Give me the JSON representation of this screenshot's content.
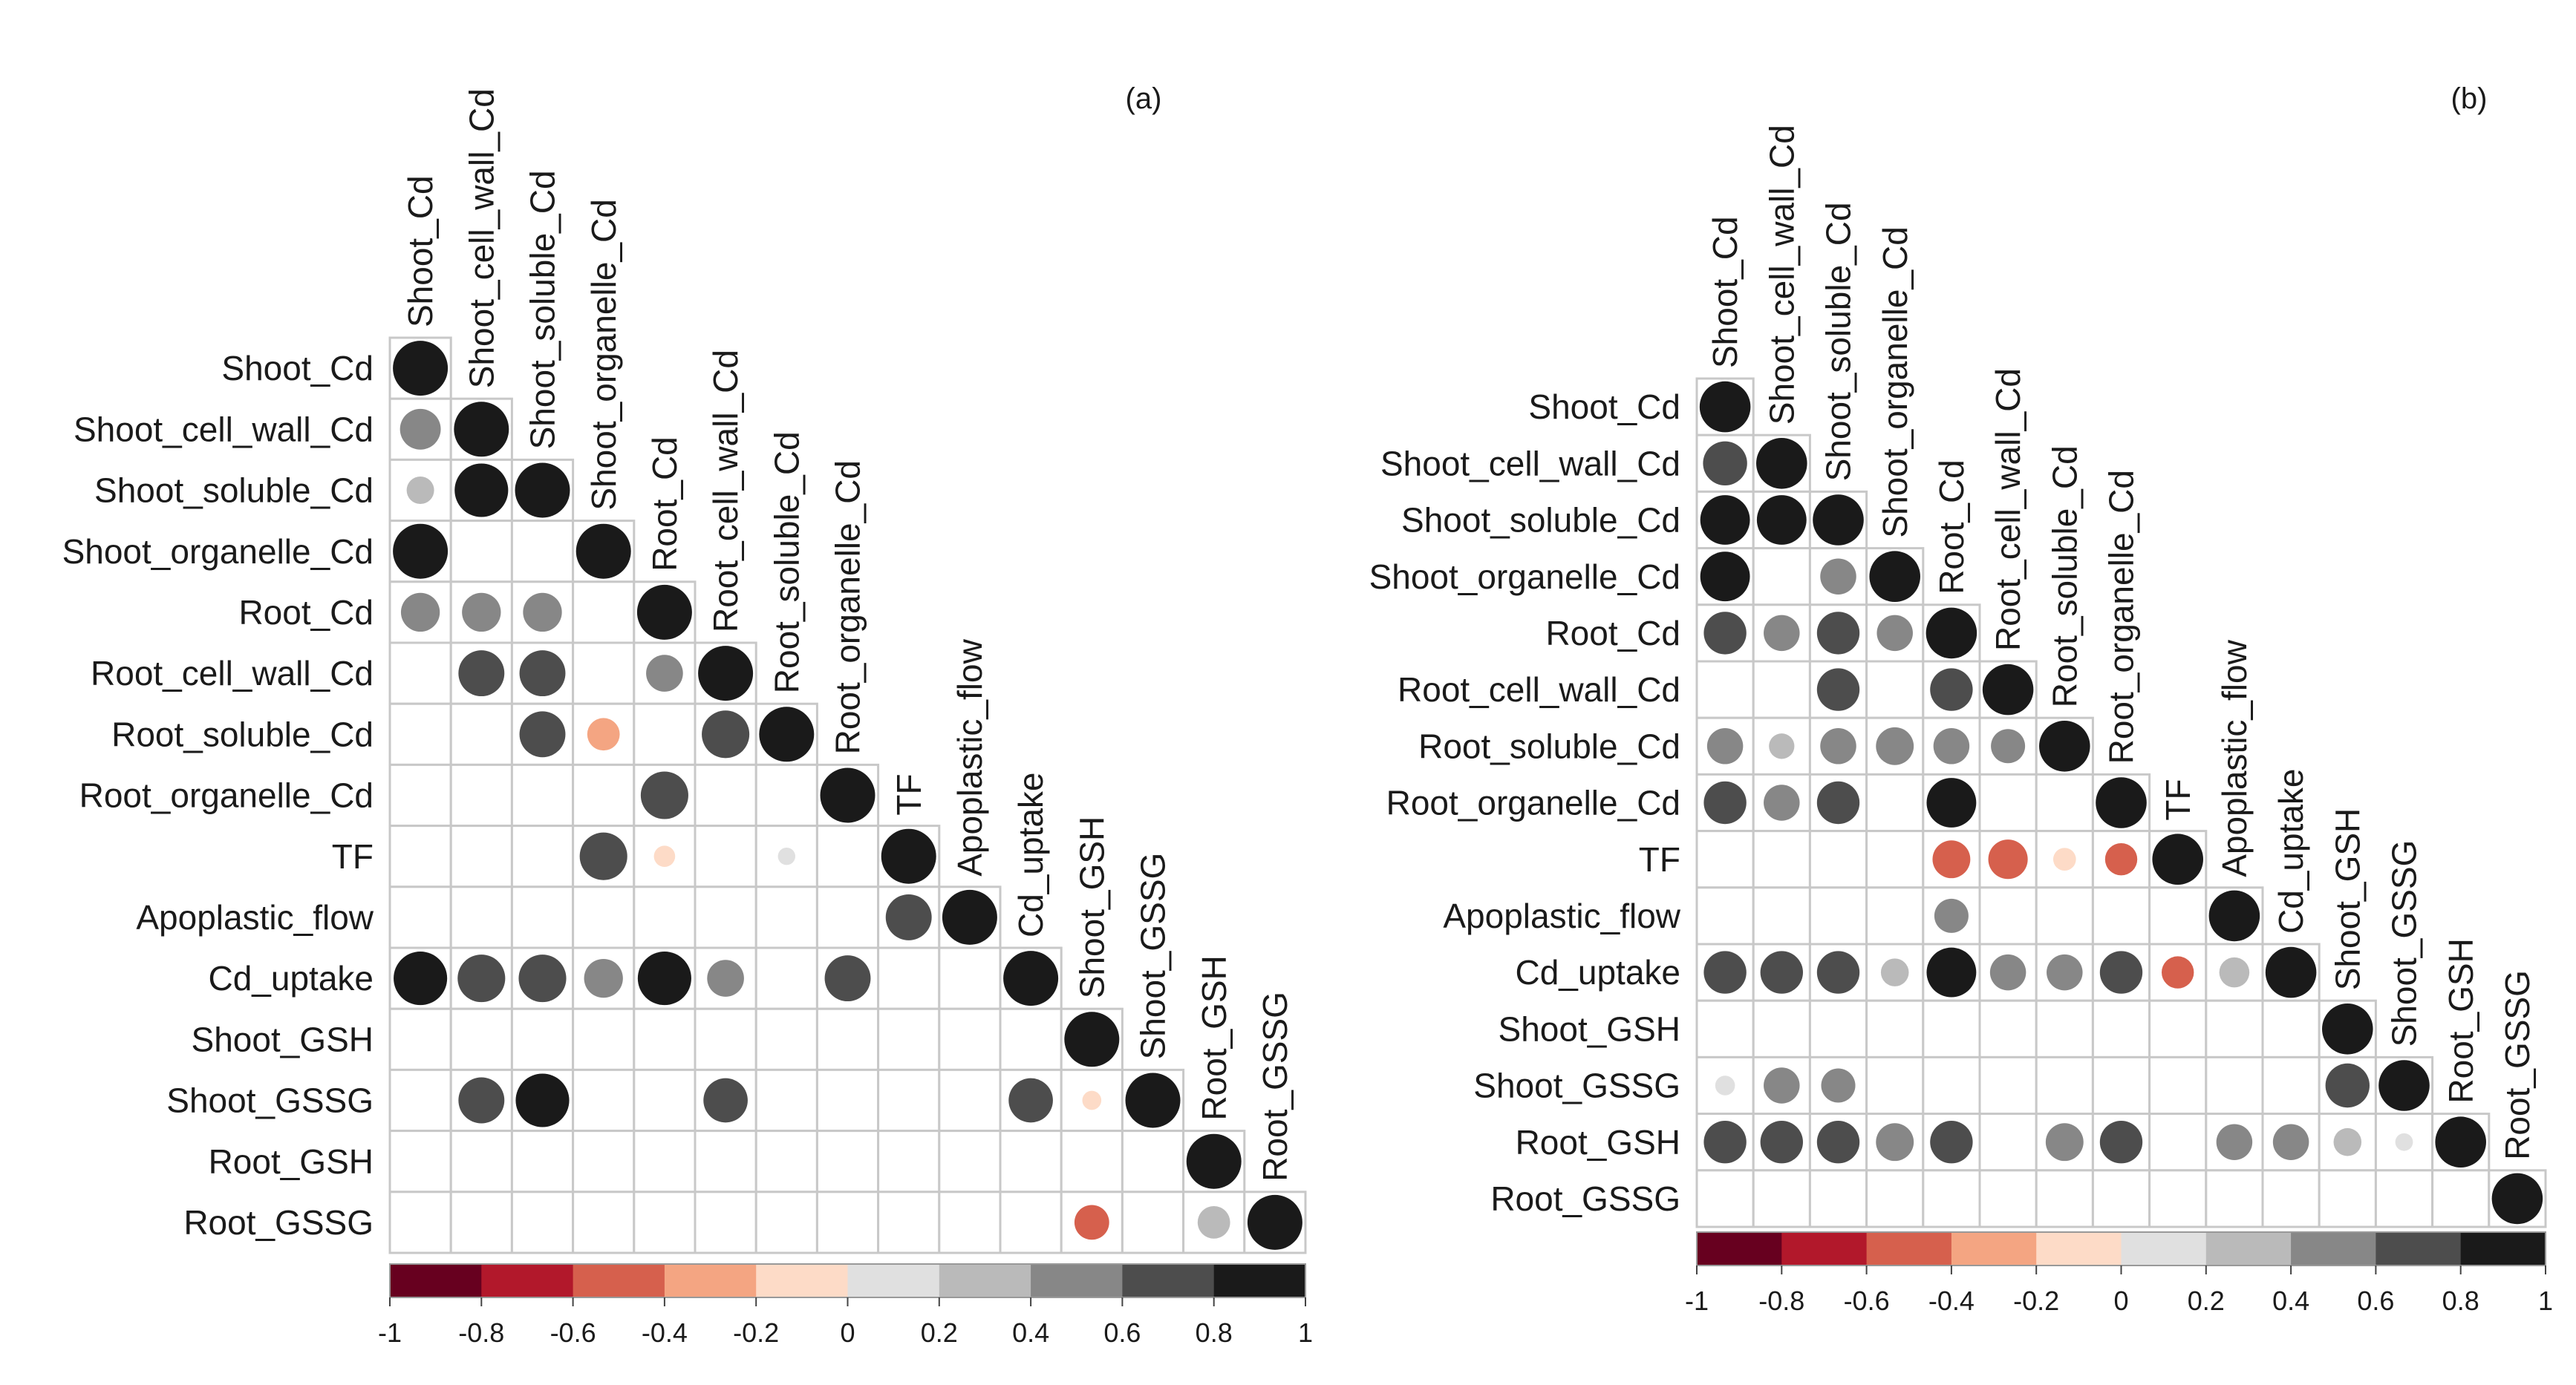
{
  "figure": {
    "description_labels": [
      "(a)",
      "(b)"
    ]
  },
  "chart_data": [
    {
      "type": "heatmap",
      "subtype": "correlogram-lower-triangle",
      "panel_label": "(a)",
      "variables": [
        "Shoot_Cd",
        "Shoot_cell_wall_Cd",
        "Shoot_soluble_Cd",
        "Shoot_organelle_Cd",
        "Root_Cd",
        "Root_cell_wall_Cd",
        "Root_soluble_Cd",
        "Root_organelle_Cd",
        "TF",
        "Apoplastic_flow",
        "Cd_uptake",
        "Shoot_GSH",
        "Shoot_GSSG",
        "Root_GSH",
        "Root_GSSG"
      ],
      "matrix": [
        [
          1
        ],
        [
          0.55,
          1
        ],
        [
          0.25,
          0.95,
          1
        ],
        [
          1,
          null,
          null,
          1
        ],
        [
          0.5,
          0.5,
          0.5,
          null,
          1
        ],
        [
          null,
          0.7,
          0.7,
          null,
          0.45,
          1
        ],
        [
          null,
          null,
          0.7,
          -0.35,
          null,
          0.75,
          1
        ],
        [
          null,
          null,
          null,
          null,
          0.75,
          null,
          null,
          1
        ],
        [
          null,
          null,
          null,
          0.75,
          -0.15,
          null,
          0.1,
          null,
          1
        ],
        [
          null,
          null,
          null,
          null,
          null,
          null,
          null,
          null,
          0.7,
          1
        ],
        [
          0.95,
          0.75,
          0.75,
          0.5,
          0.95,
          0.45,
          null,
          0.7,
          null,
          null,
          1
        ],
        [
          null,
          null,
          null,
          null,
          null,
          null,
          null,
          null,
          null,
          null,
          null,
          1
        ],
        [
          null,
          0.7,
          0.95,
          null,
          null,
          0.65,
          null,
          null,
          null,
          null,
          0.65,
          -0.12,
          1
        ],
        [
          null,
          null,
          null,
          null,
          null,
          null,
          null,
          null,
          null,
          null,
          null,
          null,
          null,
          1
        ],
        [
          null,
          null,
          null,
          null,
          null,
          null,
          null,
          null,
          null,
          null,
          null,
          -0.4,
          null,
          0.35,
          1
        ]
      ],
      "colorbar": {
        "ticks": [
          "-1",
          "-0.8",
          "-0.6",
          "-0.4",
          "-0.2",
          "0",
          "0.2",
          "0.4",
          "0.6",
          "0.8",
          "1"
        ],
        "range": [
          -1,
          1
        ]
      }
    },
    {
      "type": "heatmap",
      "subtype": "correlogram-lower-triangle",
      "panel_label": "(b)",
      "variables": [
        "Shoot_Cd",
        "Shoot_cell_wall_Cd",
        "Shoot_soluble_Cd",
        "Shoot_organelle_Cd",
        "Root_Cd",
        "Root_cell_wall_Cd",
        "Root_soluble_Cd",
        "Root_organelle_Cd",
        "TF",
        "Apoplastic_flow",
        "Cd_uptake",
        "Shoot_GSH",
        "Shoot_GSSG",
        "Root_GSH",
        "Root_GSSG"
      ],
      "matrix": [
        [
          1
        ],
        [
          0.75,
          1
        ],
        [
          0.95,
          0.95,
          1
        ],
        [
          0.95,
          null,
          0.5,
          1
        ],
        [
          0.7,
          0.5,
          0.7,
          0.5,
          1
        ],
        [
          null,
          null,
          0.7,
          null,
          0.7,
          1
        ],
        [
          0.5,
          0.25,
          0.5,
          0.55,
          0.5,
          0.45,
          1
        ],
        [
          0.7,
          0.5,
          0.7,
          null,
          0.95,
          null,
          null,
          1
        ],
        [
          null,
          null,
          null,
          null,
          -0.55,
          -0.6,
          -0.2,
          -0.4,
          1
        ],
        [
          null,
          null,
          null,
          null,
          0.45,
          null,
          null,
          null,
          null,
          1
        ],
        [
          0.7,
          0.7,
          0.7,
          0.3,
          0.95,
          0.5,
          0.5,
          0.7,
          -0.4,
          0.35,
          1
        ],
        [
          null,
          null,
          null,
          null,
          null,
          null,
          null,
          null,
          null,
          null,
          null,
          1
        ],
        [
          0.15,
          0.5,
          0.45,
          null,
          null,
          null,
          null,
          null,
          null,
          null,
          null,
          0.75,
          1
        ],
        [
          0.7,
          0.7,
          0.7,
          0.55,
          0.7,
          null,
          0.55,
          0.7,
          null,
          0.5,
          0.5,
          0.3,
          0.12,
          1
        ],
        [
          null,
          null,
          null,
          null,
          null,
          null,
          null,
          null,
          null,
          null,
          null,
          null,
          null,
          null,
          1
        ]
      ],
      "colorbar": {
        "ticks": [
          "-1",
          "-0.8",
          "-0.6",
          "-0.4",
          "-0.2",
          "0",
          "0.2",
          "0.4",
          "0.6",
          "0.8",
          "1"
        ],
        "range": [
          -1,
          1
        ]
      }
    }
  ],
  "palette": {
    "bins": [
      "#67001f",
      "#b2182b",
      "#d6604d",
      "#f4a582",
      "#fddbc7",
      "#e0e0e0",
      "#bababa",
      "#878787",
      "#4d4d4d",
      "#1a1a1a"
    ],
    "grid": "#c8c8c8",
    "text": "#1a1a1a"
  }
}
